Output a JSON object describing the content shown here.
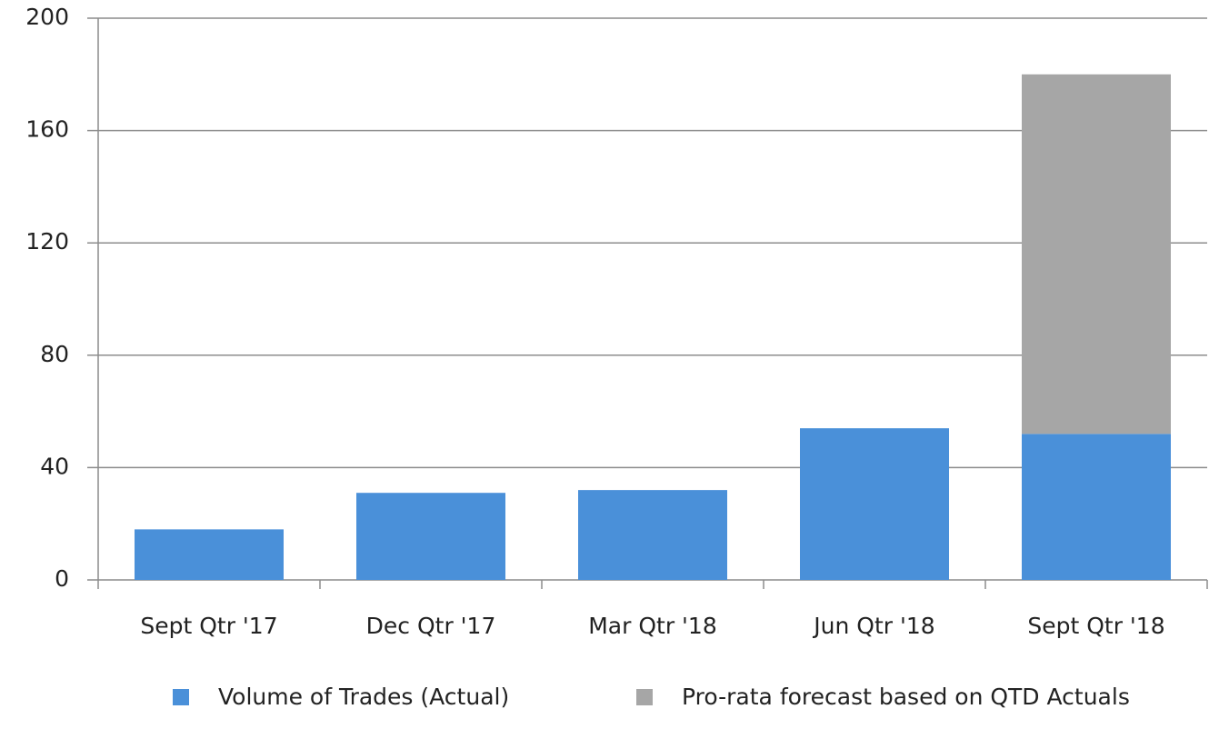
{
  "chart_data": {
    "type": "stacked_bar",
    "categories": [
      "Sept Qtr '17",
      "Dec Qtr '17",
      "Mar Qtr '18",
      "Jun Qtr '18",
      "Sept Qtr '18"
    ],
    "series": [
      {
        "name": "Volume of Trades (Actual)",
        "color": "#4a90d9",
        "values": [
          18,
          31,
          32,
          54,
          52
        ]
      },
      {
        "name": "Pro-rata forecast based on QTD Actuals",
        "color": "#a6a6a6",
        "values": [
          null,
          null,
          null,
          null,
          128
        ]
      }
    ],
    "ylim": [
      0,
      200
    ],
    "yticks": [
      0,
      40,
      80,
      120,
      160,
      200
    ],
    "grid": true,
    "legend": "bottom"
  }
}
